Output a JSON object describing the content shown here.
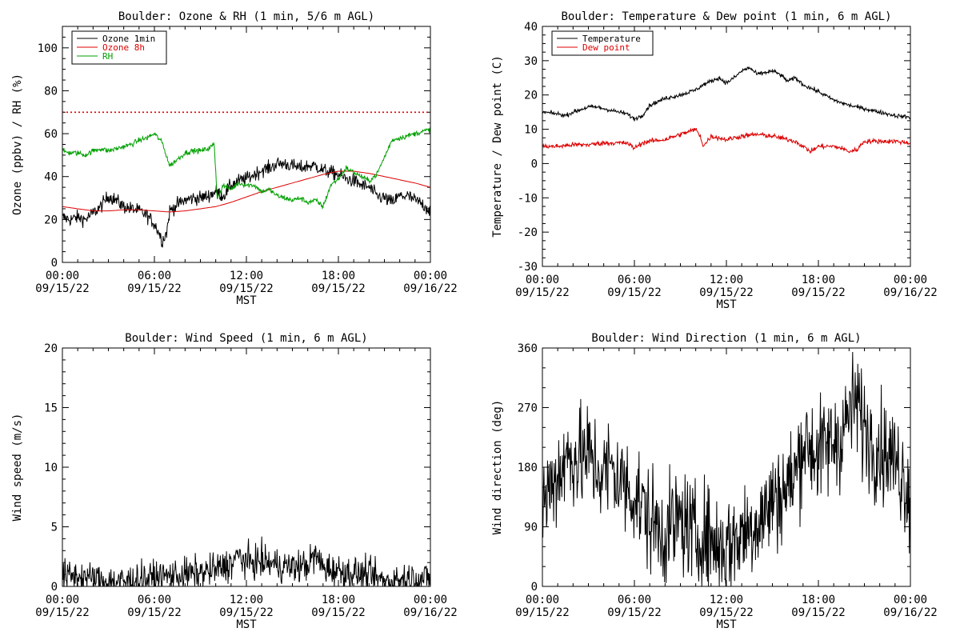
{
  "colors": {
    "black": "#000000",
    "red": "#dd0000",
    "green": "#00a000"
  },
  "chart_data": [
    {
      "id": "ozone",
      "type": "line",
      "title": "Boulder: Ozone & RH (1 min, 5/6 m AGL)",
      "xlabel": "MST",
      "ylabel": "Ozone (ppbv) / RH (%)",
      "xlim": [
        0,
        24
      ],
      "ylim": [
        0,
        110
      ],
      "yticks": [
        0,
        20,
        40,
        60,
        80,
        100
      ],
      "xticks": [
        {
          "x": 0,
          "time": "00:00",
          "date": "09/15/22"
        },
        {
          "x": 6,
          "time": "06:00",
          "date": "09/15/22"
        },
        {
          "x": 12,
          "time": "12:00",
          "date": "09/15/22"
        },
        {
          "x": 18,
          "time": "18:00",
          "date": "09/15/22"
        },
        {
          "x": 24,
          "time": "00:00",
          "date": "09/16/22"
        }
      ],
      "legend": {
        "position": "top-left",
        "entries": [
          {
            "name": "Ozone 1min",
            "color": "#000000"
          },
          {
            "name": "Ozone 8h",
            "color": "#dd0000"
          },
          {
            "name": "RH",
            "color": "#00a000"
          }
        ]
      },
      "reference_lines": [
        {
          "y": 70,
          "color": "#dd0000",
          "style": "dotted"
        }
      ],
      "series": [
        {
          "name": "Ozone 1min",
          "color": "#000000",
          "noise": 1.6,
          "x": [
            0,
            0.5,
            1,
            1.5,
            2,
            2.5,
            3,
            3.5,
            4,
            4.5,
            5,
            5.5,
            6,
            6.3,
            6.5,
            6.8,
            7,
            7.5,
            8,
            8.5,
            9,
            9.5,
            10,
            10.5,
            11,
            11.5,
            12,
            12.5,
            13,
            13.5,
            14,
            14.5,
            15,
            15.5,
            16,
            16.5,
            17,
            17.5,
            18,
            18.5,
            19,
            19.5,
            20,
            20.5,
            21,
            21.5,
            22,
            22.5,
            23,
            23.5,
            24
          ],
          "y": [
            21,
            20,
            21,
            20,
            23,
            26,
            31,
            29,
            26,
            25,
            24,
            22,
            18,
            14,
            10,
            14,
            24,
            27,
            29,
            30,
            30,
            31,
            33,
            31,
            36,
            38,
            39,
            41,
            43,
            44,
            46,
            46,
            45,
            44,
            45,
            45,
            43,
            42,
            41,
            39,
            38,
            36,
            35,
            31,
            30,
            28,
            31,
            31,
            29,
            27,
            24
          ]
        },
        {
          "name": "Ozone 8h",
          "color": "#dd0000",
          "noise": 0,
          "x": [
            0,
            1,
            2,
            3,
            4,
            5,
            6,
            7,
            8,
            9,
            10,
            11,
            12,
            13,
            14,
            15,
            16,
            17,
            18,
            19,
            20,
            21,
            22,
            23,
            24
          ],
          "y": [
            26,
            25,
            24,
            24,
            24.5,
            24.5,
            24,
            23.5,
            24,
            25,
            26,
            28,
            30.5,
            33,
            35,
            37,
            39,
            41,
            42.5,
            42.5,
            41.5,
            40,
            38.5,
            37,
            35
          ]
        },
        {
          "name": "RH",
          "color": "#00a000",
          "noise": 0.6,
          "x": [
            0,
            0.5,
            1,
            1.5,
            2,
            2.5,
            3,
            3.5,
            4,
            4.5,
            5,
            5.5,
            6,
            6.5,
            7,
            7.5,
            8,
            8.5,
            9,
            9.5,
            9.9,
            10.1,
            10.5,
            11,
            11.5,
            12,
            12.5,
            13,
            13.5,
            14,
            14.5,
            15,
            15.5,
            16,
            16.5,
            17,
            17.5,
            18,
            18.5,
            19,
            19.5,
            20,
            20.5,
            21,
            21.5,
            22,
            22.5,
            23,
            23.5,
            24
          ],
          "y": [
            52,
            51,
            51,
            50,
            52,
            53,
            52,
            53,
            54,
            55,
            57,
            58,
            60,
            56,
            45,
            48,
            51,
            52,
            52,
            53,
            55,
            30,
            36,
            34,
            37,
            36,
            36,
            33,
            34,
            31,
            30,
            29,
            30,
            28,
            29,
            26,
            36,
            39,
            44,
            42,
            40,
            38,
            41,
            49,
            57,
            58,
            59,
            60,
            61,
            62
          ]
        }
      ]
    },
    {
      "id": "temp",
      "type": "line",
      "title": "Boulder: Temperature & Dew point (1 min, 6 m AGL)",
      "xlabel": "MST",
      "ylabel": "Temperature / Dew point (C)",
      "xlim": [
        0,
        24
      ],
      "ylim": [
        -30,
        40
      ],
      "yticks": [
        -30,
        -20,
        -10,
        0,
        10,
        20,
        30,
        40
      ],
      "xticks": [
        {
          "x": 0,
          "time": "00:00",
          "date": "09/15/22"
        },
        {
          "x": 6,
          "time": "06:00",
          "date": "09/15/22"
        },
        {
          "x": 12,
          "time": "12:00",
          "date": "09/15/22"
        },
        {
          "x": 18,
          "time": "18:00",
          "date": "09/15/22"
        },
        {
          "x": 24,
          "time": "00:00",
          "date": "09/16/22"
        }
      ],
      "legend": {
        "position": "top-left",
        "entries": [
          {
            "name": "Temperature",
            "color": "#000000"
          },
          {
            "name": "Dew point",
            "color": "#dd0000"
          }
        ]
      },
      "series": [
        {
          "name": "Temperature",
          "color": "#000000",
          "noise": 0.3,
          "x": [
            0,
            1,
            1.5,
            2,
            3,
            3.5,
            4,
            5,
            5.5,
            6,
            6.5,
            7,
            8,
            9,
            10,
            10.5,
            11,
            11.5,
            12,
            12.5,
            13,
            13.5,
            14,
            14.5,
            15,
            15.5,
            16,
            16.5,
            17,
            18,
            19,
            20,
            21,
            22,
            23,
            24
          ],
          "y": [
            15,
            14.5,
            14,
            15,
            16.5,
            16.5,
            16,
            15,
            14.5,
            13,
            14,
            17,
            19,
            20,
            21.5,
            23,
            24,
            25,
            23.5,
            25,
            27,
            28,
            26,
            26.5,
            27,
            26,
            24,
            25,
            23,
            21,
            18.5,
            17,
            16,
            15,
            14,
            13.5
          ]
        },
        {
          "name": "Dew point",
          "color": "#dd0000",
          "noise": 0.35,
          "x": [
            0,
            1,
            2,
            3,
            4,
            5,
            5.5,
            6,
            6.5,
            7,
            8,
            9,
            10,
            10.3,
            10.5,
            11,
            12,
            13,
            14,
            15,
            16,
            16.5,
            17,
            17.5,
            18,
            19,
            19.5,
            20,
            20.5,
            21,
            22,
            23,
            24
          ],
          "y": [
            5,
            5,
            5.5,
            5.5,
            6,
            6,
            6,
            4.5,
            6,
            6.5,
            7,
            8.5,
            10,
            8,
            5,
            8,
            7,
            8,
            8.5,
            8,
            7,
            6.5,
            5,
            3.5,
            5,
            5,
            4.5,
            3.5,
            4,
            6.5,
            6.5,
            6.5,
            6
          ]
        }
      ]
    },
    {
      "id": "wspd",
      "type": "line",
      "title": "Boulder: Wind Speed (1 min, 6 m AGL)",
      "xlabel": "MST",
      "ylabel": "Wind speed (m/s)",
      "xlim": [
        0,
        24
      ],
      "ylim": [
        0,
        20
      ],
      "yticks": [
        0,
        5,
        10,
        15,
        20
      ],
      "xticks": [
        {
          "x": 0,
          "time": "00:00",
          "date": "09/15/22"
        },
        {
          "x": 6,
          "time": "06:00",
          "date": "09/15/22"
        },
        {
          "x": 12,
          "time": "12:00",
          "date": "09/15/22"
        },
        {
          "x": 18,
          "time": "18:00",
          "date": "09/15/22"
        },
        {
          "x": 24,
          "time": "00:00",
          "date": "09/16/22"
        }
      ],
      "series": [
        {
          "name": "",
          "color": "#000000",
          "noise": 0.7,
          "clampMin": 0,
          "x": [
            0,
            1,
            2,
            3,
            4,
            5,
            6,
            7,
            8,
            9,
            10,
            11,
            11.5,
            12,
            13,
            14,
            15,
            16,
            16.5,
            17,
            18,
            19,
            20,
            21,
            22,
            23,
            24
          ],
          "y": [
            0.8,
            0.9,
            0.6,
            0.4,
            0.4,
            0.6,
            0.7,
            0.9,
            1.0,
            1.1,
            1.4,
            1.9,
            2.6,
            2.0,
            2.1,
            1.8,
            1.6,
            1.8,
            2.6,
            1.6,
            1.3,
            1.1,
            0.9,
            0.4,
            0.6,
            0.7,
            0.6
          ]
        }
      ]
    },
    {
      "id": "wdir",
      "type": "line",
      "title": "Boulder: Wind Direction (1 min, 6 m AGL)",
      "xlabel": "MST",
      "ylabel": "Wind direction (deg)",
      "xlim": [
        0,
        24
      ],
      "ylim": [
        0,
        360
      ],
      "yticks": [
        0,
        90,
        180,
        270,
        360
      ],
      "xticks": [
        {
          "x": 0,
          "time": "00:00",
          "date": "09/15/22"
        },
        {
          "x": 6,
          "time": "06:00",
          "date": "09/15/22"
        },
        {
          "x": 12,
          "time": "12:00",
          "date": "09/15/22"
        },
        {
          "x": 18,
          "time": "18:00",
          "date": "09/15/22"
        },
        {
          "x": 24,
          "time": "00:00",
          "date": "09/16/22"
        }
      ],
      "series": [
        {
          "name": "",
          "color": "#000000",
          "noise": 40,
          "clampMin": 0,
          "clampMax": 360,
          "x": [
            0,
            0.5,
            1,
            1.5,
            2,
            2.5,
            3,
            3.5,
            4,
            4.5,
            5,
            5.5,
            6,
            6.5,
            7,
            7.5,
            8,
            8.5,
            9,
            9.5,
            10,
            10.5,
            11,
            11.5,
            12,
            12.5,
            13,
            13.5,
            14,
            14.5,
            15,
            15.5,
            16,
            16.5,
            17,
            17.5,
            18,
            18.5,
            19,
            19.5,
            20,
            20.5,
            21,
            21.5,
            22,
            22.5,
            23,
            23.5,
            24
          ],
          "y": [
            120,
            150,
            170,
            190,
            200,
            190,
            200,
            180,
            170,
            180,
            160,
            150,
            140,
            120,
            100,
            90,
            80,
            90,
            100,
            90,
            70,
            80,
            70,
            60,
            60,
            70,
            80,
            90,
            100,
            110,
            130,
            140,
            150,
            170,
            220,
            210,
            200,
            210,
            220,
            230,
            260,
            280,
            240,
            220,
            210,
            200,
            190,
            170,
            140
          ]
        }
      ]
    }
  ]
}
